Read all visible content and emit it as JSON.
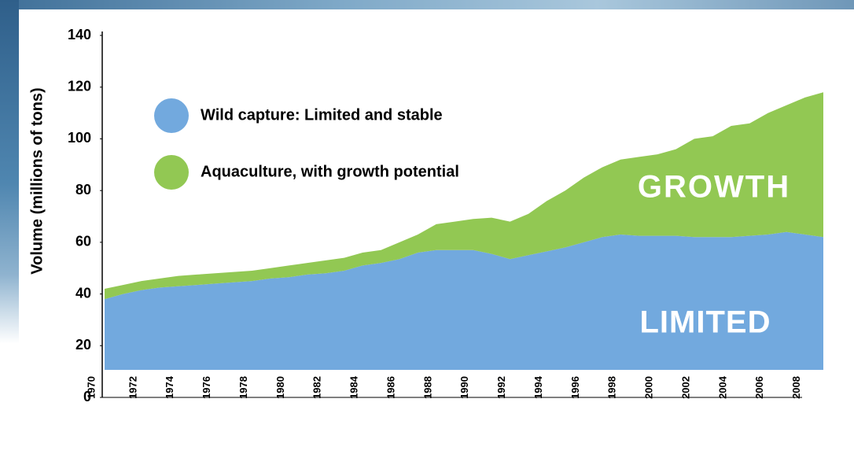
{
  "chart_data": {
    "type": "stacked-area",
    "y_label": "Volume (millions of tons)",
    "x": [
      1970,
      1971,
      1972,
      1973,
      1974,
      1975,
      1976,
      1977,
      1978,
      1979,
      1980,
      1981,
      1982,
      1983,
      1984,
      1985,
      1986,
      1987,
      1988,
      1989,
      1990,
      1991,
      1992,
      1993,
      1994,
      1995,
      1996,
      1997,
      1998,
      1999,
      2000,
      2001,
      2002,
      2003,
      2004,
      2005,
      2006,
      2007,
      2008,
      2009
    ],
    "xlim": [
      1970,
      2009
    ],
    "xticks": [
      1970,
      1972,
      1974,
      1976,
      1978,
      1980,
      1982,
      1984,
      1986,
      1988,
      1990,
      1992,
      1994,
      1996,
      1998,
      2000,
      2002,
      2004,
      2006,
      2008
    ],
    "ylim": [
      0,
      140
    ],
    "yticks": [
      0,
      20,
      40,
      60,
      80,
      100,
      120,
      140
    ],
    "series": [
      {
        "name": "Wild capture: Limited and stable",
        "color": "#72a9de",
        "values": [
          38,
          40,
          41.5,
          42.5,
          43,
          43.5,
          44,
          44.5,
          45,
          46,
          46.5,
          47.5,
          48,
          49,
          51,
          52,
          53.5,
          56,
          57,
          57,
          57,
          55.5,
          53.5,
          55,
          56.5,
          58,
          60,
          62,
          63,
          62.5,
          62.5,
          62.5,
          62,
          62,
          62,
          62.5,
          63,
          64,
          63,
          62
        ]
      },
      {
        "name": "Aquaculture, with growth potential",
        "color": "#92c853",
        "values": [
          4,
          3.5,
          3.5,
          3.5,
          4,
          4,
          4,
          4,
          4,
          4,
          4.5,
          4.5,
          5,
          5,
          5,
          5,
          6.5,
          7,
          10,
          11,
          12,
          14,
          14.5,
          16,
          19.5,
          22,
          25,
          27,
          29,
          30.5,
          31.5,
          33.5,
          38,
          39,
          43,
          43.5,
          47,
          49,
          53,
          56
        ]
      }
    ],
    "annotations": [
      "GROWTH",
      "LIMITED"
    ]
  }
}
